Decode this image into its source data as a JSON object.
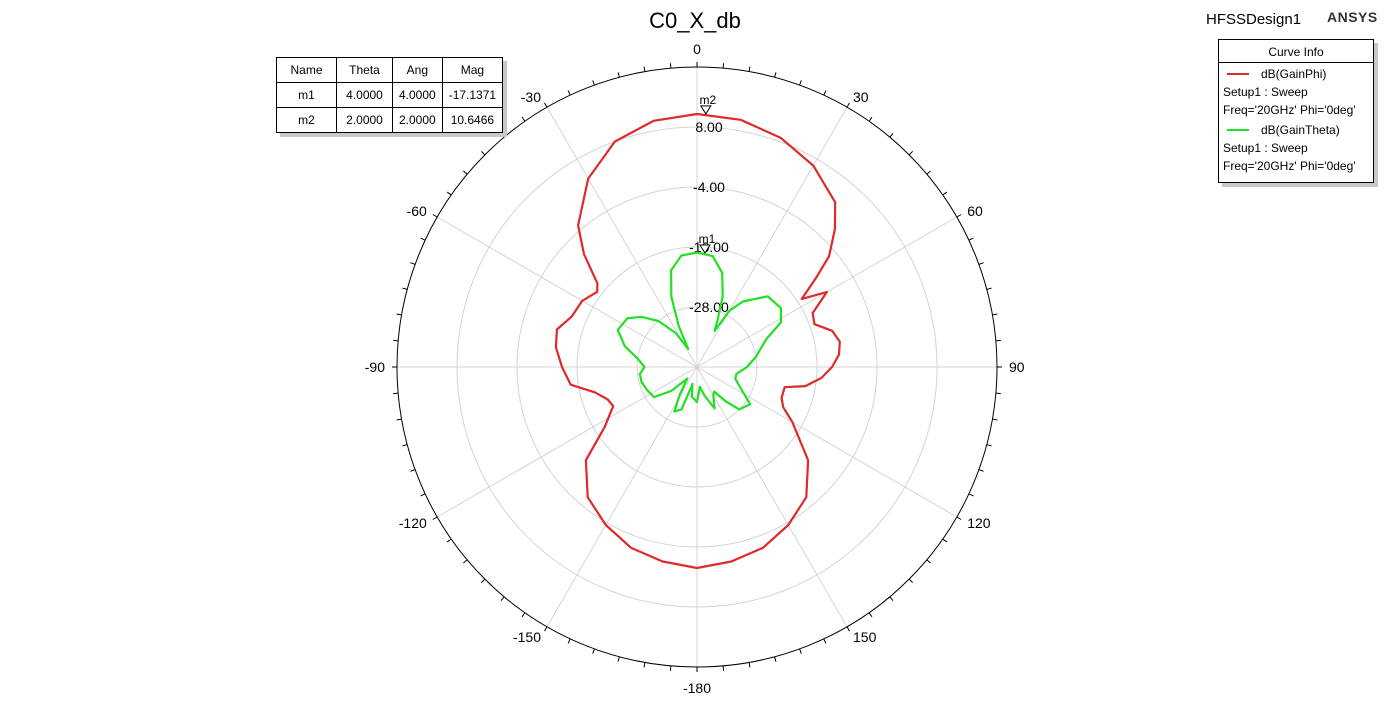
{
  "title": "C0_X_db",
  "design_name": "HFSSDesign1",
  "brand": "ANSYS",
  "marker_table": {
    "headers": [
      "Name",
      "Theta",
      "Ang",
      "Mag"
    ],
    "rows": [
      [
        "m1",
        "4.0000",
        "4.0000",
        "-17.1371"
      ],
      [
        "m2",
        "2.0000",
        "2.0000",
        "10.6466"
      ]
    ]
  },
  "legend": {
    "header": "Curve Info",
    "entries": [
      {
        "name": "dB(GainPhi)",
        "line1": "Setup1 : Sweep",
        "line2": "Freq='20GHz' Phi='0deg'",
        "color": "#dd2a2a"
      },
      {
        "name": "dB(GainTheta)",
        "line1": "Setup1 : Sweep",
        "line2": "Freq='20GHz' Phi='0deg'",
        "color": "#22e022"
      }
    ]
  },
  "chart_data": {
    "type": "polar",
    "radial_range": [
      -40,
      20
    ],
    "radial_ticks": [
      "8.00",
      "-4.00",
      "-16.00",
      "-28.00"
    ],
    "angle_labels": [
      "0",
      "30",
      "60",
      "90",
      "120",
      "150",
      "-180",
      "-150",
      "-120",
      "-90",
      "-60",
      "-30"
    ],
    "grid": true,
    "series": [
      {
        "name": "dB(GainPhi)",
        "color": "#dd2a2a",
        "points": [
          [
            0,
            10.6
          ],
          [
            10,
            10.2
          ],
          [
            20,
            8.8
          ],
          [
            30,
            6.5
          ],
          [
            40,
            3.0
          ],
          [
            45,
            -1.0
          ],
          [
            50,
            -5.5
          ],
          [
            53,
            -10.0
          ],
          [
            57,
            -15.0
          ],
          [
            60,
            -10.0
          ],
          [
            65,
            -14.5
          ],
          [
            70,
            -15.0
          ],
          [
            75,
            -12.0
          ],
          [
            80,
            -11.0
          ],
          [
            85,
            -11.5
          ],
          [
            90,
            -13.0
          ],
          [
            95,
            -15.0
          ],
          [
            100,
            -18.0
          ],
          [
            103,
            -22.0
          ],
          [
            110,
            -22.0
          ],
          [
            115,
            -21.0
          ],
          [
            120,
            -18.0
          ],
          [
            130,
            -11.0
          ],
          [
            140,
            -6.0
          ],
          [
            150,
            -3.5
          ],
          [
            160,
            -1.5
          ],
          [
            170,
            -0.5
          ],
          [
            180,
            0.2
          ],
          [
            190,
            -0.5
          ],
          [
            200,
            -1.5
          ],
          [
            210,
            -3.5
          ],
          [
            220,
            -6.0
          ],
          [
            230,
            -11.0
          ],
          [
            237,
            -18.0
          ],
          [
            245,
            -21.5
          ],
          [
            250,
            -21.0
          ],
          [
            256,
            -19.0
          ],
          [
            262,
            -14.5
          ],
          [
            270,
            -13.0
          ],
          [
            278,
            -11.5
          ],
          [
            285,
            -11.0
          ],
          [
            292,
            -13.0
          ],
          [
            300,
            -13.5
          ],
          [
            307,
            -15.0
          ],
          [
            310,
            -14.0
          ],
          [
            315,
            -8.0
          ],
          [
            320,
            -3.0
          ],
          [
            330,
            3.5
          ],
          [
            340,
            8.0
          ],
          [
            350,
            10.0
          ],
          [
            360,
            10.6
          ]
        ]
      },
      {
        "name": "dB(GainTheta)",
        "color": "#22e022",
        "points": [
          [
            0,
            -17.1
          ],
          [
            8,
            -17.6
          ],
          [
            15,
            -20.5
          ],
          [
            20,
            -25.0
          ],
          [
            24,
            -30.0
          ],
          [
            26,
            -32.0
          ],
          [
            30,
            -27.0
          ],
          [
            35,
            -24.0
          ],
          [
            45,
            -20.0
          ],
          [
            55,
            -19.5
          ],
          [
            62,
            -21.0
          ],
          [
            68,
            -25.0
          ],
          [
            75,
            -27.0
          ],
          [
            80,
            -28.0
          ],
          [
            90,
            -30.0
          ],
          [
            100,
            -32.0
          ],
          [
            107,
            -32.0
          ],
          [
            115,
            -30.5
          ],
          [
            125,
            -27.0
          ],
          [
            135,
            -28.0
          ],
          [
            140,
            -31.0
          ],
          [
            145,
            -34.0
          ],
          [
            150,
            -33.5
          ],
          [
            157,
            -31.0
          ],
          [
            165,
            -34.0
          ],
          [
            172,
            -36.0
          ],
          [
            180,
            -33.0
          ],
          [
            190,
            -34.0
          ],
          [
            195,
            -36.5
          ],
          [
            200,
            -31.0
          ],
          [
            207,
            -30.0
          ],
          [
            212,
            -33.5
          ],
          [
            220,
            -37.0
          ],
          [
            227,
            -33.0
          ],
          [
            235,
            -29.5
          ],
          [
            245,
            -29.0
          ],
          [
            255,
            -28.5
          ],
          [
            263,
            -28.5
          ],
          [
            270,
            -29.5
          ],
          [
            278,
            -28.0
          ],
          [
            286,
            -25.0
          ],
          [
            295,
            -22.5
          ],
          [
            305,
            -23.0
          ],
          [
            312,
            -25.0
          ],
          [
            320,
            -28.0
          ],
          [
            328,
            -32.0
          ],
          [
            334,
            -36.0
          ],
          [
            336,
            -31.0
          ],
          [
            340,
            -25.0
          ],
          [
            345,
            -20.0
          ],
          [
            352,
            -17.5
          ],
          [
            360,
            -17.1
          ]
        ]
      }
    ],
    "markers": [
      {
        "name": "m1",
        "angle": 4,
        "value": -17.1371
      },
      {
        "name": "m2",
        "angle": 2,
        "value": 10.6466
      }
    ]
  }
}
